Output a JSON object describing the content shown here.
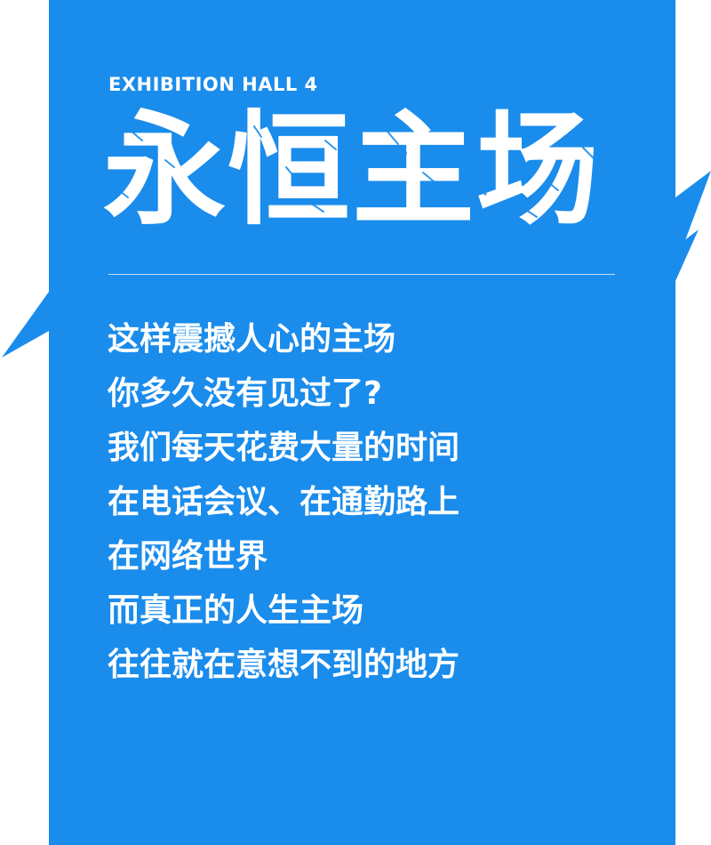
{
  "colors": {
    "background": "#ffffff",
    "panel": "#1a8cec",
    "text": "#ffffff"
  },
  "poster": {
    "eyebrow": "EXHIBITION HALL 4",
    "title": "永恒主场",
    "lines": [
      "这样震撼人心的主场",
      "你多久没有见过了?",
      "我们每天花费大量的时间",
      "在电话会议、在通勤路上",
      "在网络世界",
      "而真正的人生主场",
      "往往就在意想不到的地方"
    ]
  }
}
